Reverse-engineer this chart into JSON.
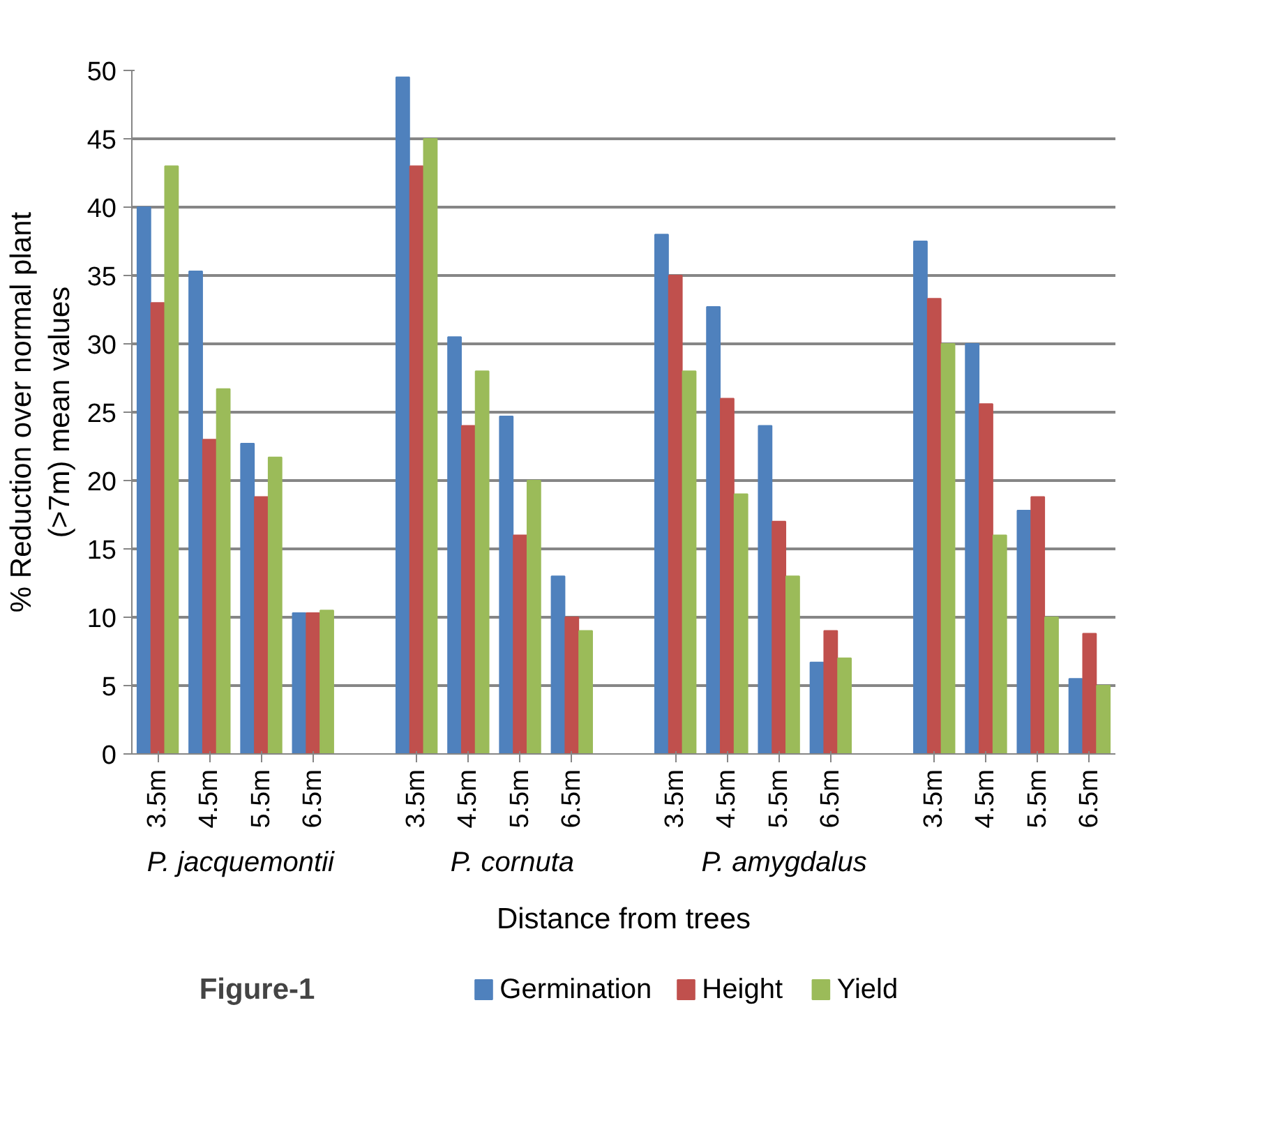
{
  "chart_data": {
    "type": "bar",
    "xlabel": "Distance from trees",
    "ylabel": "% Reduction over normal plant\n(>7m) mean values",
    "categories": [
      "3.5m",
      "4.5m",
      "5.5m",
      "6.5m",
      null,
      "3.5m",
      "4.5m",
      "5.5m",
      "6.5m",
      null,
      "3.5m",
      "4.5m",
      "5.5m",
      "6.5m",
      null,
      "3.5m",
      "4.5m",
      "5.5m",
      "6.5m"
    ],
    "series": [
      {
        "name": "Germination",
        "color": "#4f81bd",
        "values": [
          40,
          35.3,
          22.7,
          10.3,
          null,
          49.5,
          30.5,
          24.7,
          13,
          null,
          38,
          32.7,
          24,
          6.7,
          null,
          37.5,
          30,
          17.8,
          5.5
        ]
      },
      {
        "name": "Height",
        "color": "#c0504d",
        "values": [
          33,
          23,
          18.8,
          10.3,
          null,
          43,
          24,
          16,
          10,
          null,
          35,
          26,
          17,
          9,
          null,
          33.3,
          25.6,
          18.8,
          8.8
        ]
      },
      {
        "name": "Yield",
        "color": "#9bbb59",
        "values": [
          43,
          26.7,
          21.7,
          10.5,
          null,
          45,
          28,
          20,
          9,
          null,
          28,
          19,
          13,
          7,
          null,
          30,
          16,
          10,
          5
        ]
      }
    ],
    "ylim": [
      0,
      50
    ],
    "yticks": [
      0,
      5,
      10,
      15,
      20,
      25,
      30,
      35,
      40,
      45,
      50
    ],
    "grid": "y",
    "legend": "bottom",
    "annotations": [
      "P. jacquemontii",
      "P. cornuta",
      "P. amygdalus",
      "Figure-1"
    ]
  }
}
